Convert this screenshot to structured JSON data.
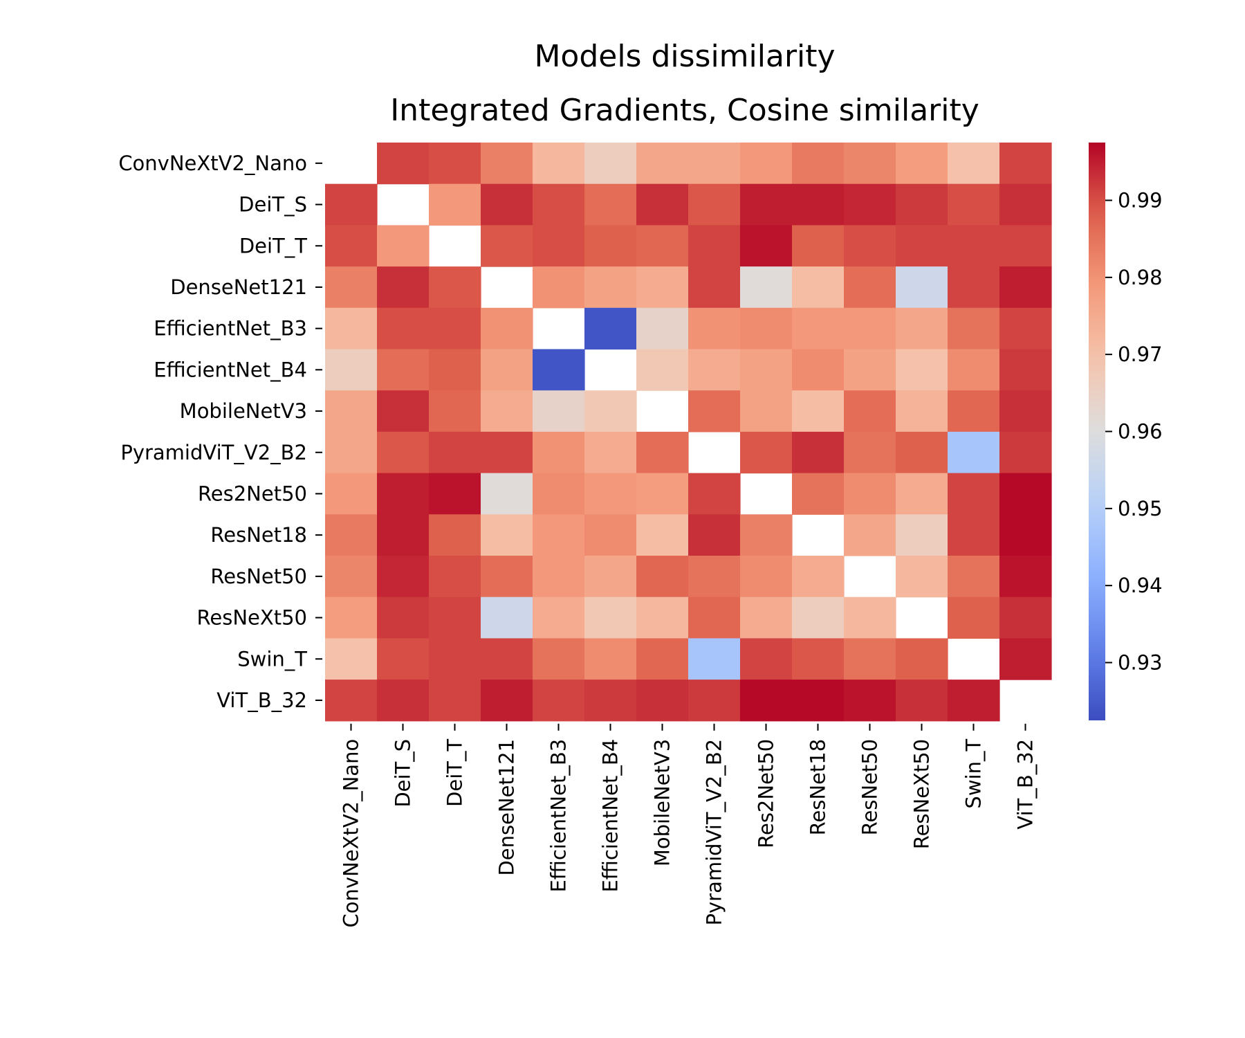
{
  "chart_data": {
    "type": "heatmap",
    "title_lines": [
      "Models dissimilarity",
      "Integrated Gradients, Cosine similarity"
    ],
    "row_labels": [
      "ConvNeXtV2_Nano",
      "DeiT_S",
      "DeiT_T",
      "DenseNet121",
      "EfficientNet_B3",
      "EfficientNet_B4",
      "MobileNetV3",
      "PyramidViT_V2_B2",
      "Res2Net50",
      "ResNet18",
      "ResNet50",
      "ResNeXt50",
      "Swin_T",
      "ViT_B_32"
    ],
    "col_labels": [
      "ConvNeXtV2_Nano",
      "DeiT_S",
      "DeiT_T",
      "DenseNet121",
      "EfficientNet_B3",
      "EfficientNet_B4",
      "MobileNetV3",
      "PyramidViT_V2_B2",
      "Res2Net50",
      "ResNet18",
      "ResNet50",
      "ResNeXt50",
      "Swin_T",
      "ViT_B_32"
    ],
    "values": [
      [
        null,
        0.991,
        0.99,
        0.983,
        0.972,
        0.966,
        0.976,
        0.976,
        0.979,
        0.984,
        0.982,
        0.978,
        0.97,
        0.991
      ],
      [
        0.991,
        null,
        0.979,
        0.993,
        0.99,
        0.986,
        0.993,
        0.989,
        0.995,
        0.995,
        0.994,
        0.992,
        0.99,
        0.993
      ],
      [
        0.99,
        0.979,
        null,
        0.989,
        0.99,
        0.988,
        0.987,
        0.991,
        0.996,
        0.988,
        0.99,
        0.991,
        0.991,
        0.991
      ],
      [
        0.983,
        0.993,
        0.989,
        null,
        0.98,
        0.977,
        0.975,
        0.991,
        0.961,
        0.971,
        0.986,
        0.956,
        0.991,
        0.995
      ],
      [
        0.972,
        0.99,
        0.99,
        0.98,
        null,
        0.924,
        0.964,
        0.98,
        0.981,
        0.979,
        0.979,
        0.976,
        0.985,
        0.991
      ],
      [
        0.966,
        0.986,
        0.988,
        0.977,
        0.924,
        null,
        0.968,
        0.975,
        0.977,
        0.981,
        0.977,
        0.97,
        0.981,
        0.992
      ],
      [
        0.976,
        0.993,
        0.987,
        0.975,
        0.964,
        0.968,
        null,
        0.986,
        0.977,
        0.971,
        0.986,
        0.973,
        0.987,
        0.993
      ],
      [
        0.976,
        0.989,
        0.991,
        0.991,
        0.98,
        0.975,
        0.986,
        null,
        0.989,
        0.993,
        0.985,
        0.988,
        0.947,
        0.992
      ],
      [
        0.979,
        0.995,
        0.996,
        0.961,
        0.981,
        0.979,
        0.978,
        0.991,
        null,
        0.985,
        0.981,
        0.975,
        0.991,
        0.997
      ],
      [
        0.984,
        0.995,
        0.988,
        0.971,
        0.979,
        0.981,
        0.971,
        0.993,
        0.983,
        null,
        0.976,
        0.966,
        0.991,
        0.997
      ],
      [
        0.982,
        0.994,
        0.99,
        0.986,
        0.979,
        0.976,
        0.987,
        0.985,
        0.981,
        0.975,
        null,
        0.972,
        0.985,
        0.996
      ],
      [
        0.978,
        0.992,
        0.991,
        0.956,
        0.975,
        0.968,
        0.972,
        0.987,
        0.975,
        0.966,
        0.972,
        null,
        0.988,
        0.993
      ],
      [
        0.97,
        0.99,
        0.991,
        0.991,
        0.985,
        0.981,
        0.987,
        0.947,
        0.991,
        0.989,
        0.985,
        0.988,
        null,
        0.995
      ],
      [
        0.991,
        0.993,
        0.991,
        0.995,
        0.991,
        0.992,
        0.993,
        0.992,
        0.997,
        0.997,
        0.996,
        0.993,
        0.995,
        null
      ]
    ],
    "colormap": "coolwarm",
    "vmin": 0.9225,
    "vmax": 0.9975,
    "colorbar_ticks": [
      0.93,
      0.94,
      0.95,
      0.96,
      0.97,
      0.98,
      0.99
    ],
    "colorbar_tick_labels": [
      "0.93",
      "0.94",
      "0.95",
      "0.96",
      "0.97",
      "0.98",
      "0.99"
    ],
    "grid": false,
    "legend": "colorbar-right"
  }
}
